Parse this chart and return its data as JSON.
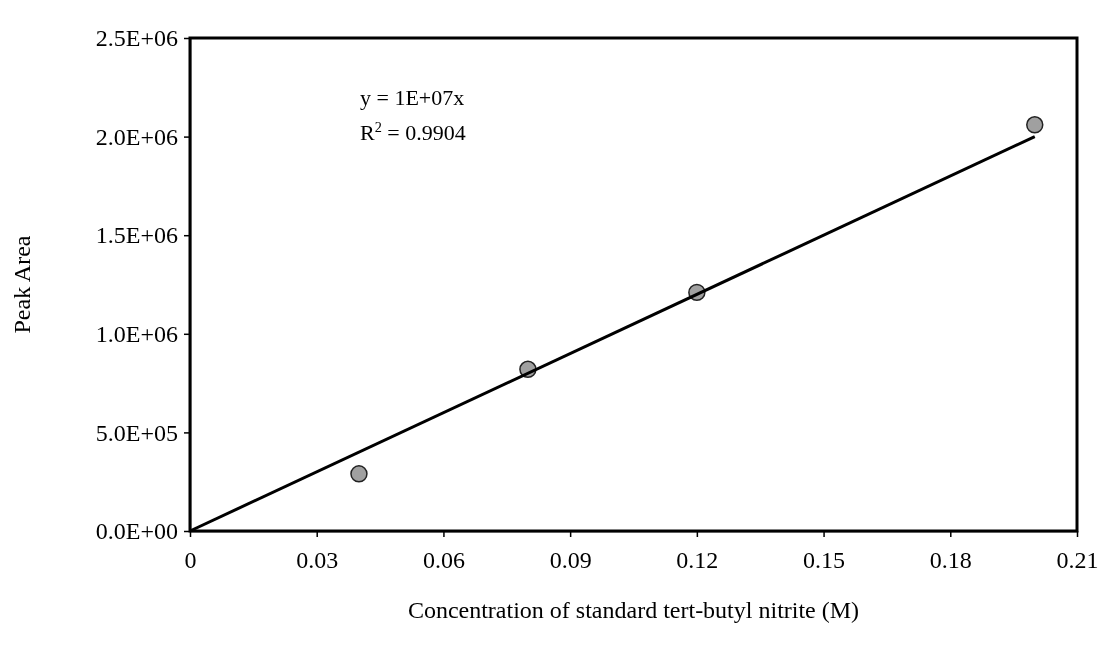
{
  "chart_data": {
    "type": "scatter",
    "xlabel": "Concentration of standard tert-butyl nitrite (M)",
    "ylabel": "Peak Area",
    "xlim": [
      0,
      0.21
    ],
    "xticks": [
      0,
      0.03,
      0.06,
      0.09,
      0.12,
      0.15,
      0.18,
      0.21
    ],
    "ylim": [
      0,
      2500000
    ],
    "yticks": [
      {
        "value": 0,
        "label": "0.0E+00"
      },
      {
        "value": 500000,
        "label": "5.0E+05"
      },
      {
        "value": 1000000,
        "label": "1.0E+06"
      },
      {
        "value": 1500000,
        "label": "1.5E+06"
      },
      {
        "value": 2000000,
        "label": "2.0E+06"
      },
      {
        "value": 2500000,
        "label": "2.5E+06"
      }
    ],
    "grid": false,
    "marker": "circle",
    "series": [
      {
        "color": "#a0a0a0",
        "x": [
          0.04,
          0.08,
          0.12,
          0.2
        ],
        "values": [
          290000,
          820000,
          1210000,
          2060000
        ]
      },
      {
        "type": "line",
        "marker": "none",
        "color": "#000000",
        "x": [
          0,
          0.2
        ],
        "values": [
          0,
          2000000
        ]
      }
    ],
    "annotations": [
      "y = 1E+07x",
      "R$^{2}$ = 0.9904"
    ]
  }
}
